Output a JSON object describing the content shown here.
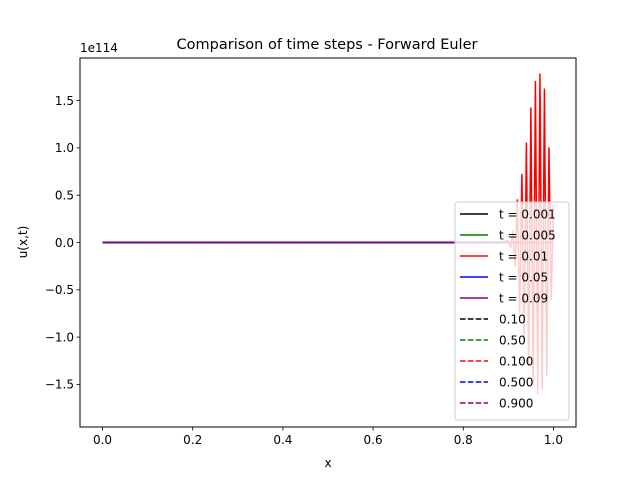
{
  "chart_data": {
    "type": "line",
    "title": "Comparison of time steps - Forward Euler",
    "xlabel": "x",
    "ylabel": "u(x,t)",
    "offset_label": "1e114",
    "xlim": [
      -0.05,
      1.05
    ],
    "ylim": [
      -1.95,
      1.95
    ],
    "xticks": [
      0.0,
      0.2,
      0.4,
      0.6,
      0.8,
      1.0
    ],
    "xtick_labels": [
      "0.0",
      "0.2",
      "0.4",
      "0.6",
      "0.8",
      "1.0"
    ],
    "yticks": [
      -1.5,
      -1.0,
      -0.5,
      0.0,
      0.5,
      1.0,
      1.5
    ],
    "ytick_labels": [
      "−1.5",
      "−1.0",
      "−0.5",
      "0.0",
      "0.5",
      "1.0",
      "1.5"
    ],
    "grid": false,
    "legend_position": "lower-right",
    "series": [
      {
        "name": "t = 0.001",
        "color": "#000000",
        "dash": "solid",
        "x": [
          0.0,
          1.0
        ],
        "y": [
          0.0,
          0.0
        ]
      },
      {
        "name": "t = 0.005",
        "color": "#008000",
        "dash": "solid",
        "x": [
          0.0,
          1.0
        ],
        "y": [
          0.0,
          0.0
        ]
      },
      {
        "name": "t = 0.01",
        "color": "#ff0000",
        "dash": "solid",
        "x": [
          0.0,
          0.88,
          0.9,
          0.905,
          0.91,
          0.915,
          0.92,
          0.925,
          0.93,
          0.935,
          0.94,
          0.945,
          0.95,
          0.955,
          0.96,
          0.965,
          0.97,
          0.975,
          0.98,
          0.985,
          0.99,
          0.995,
          1.0
        ],
        "y": [
          0.0,
          0.0,
          0.02,
          -0.05,
          0.12,
          -0.25,
          0.45,
          -0.75,
          0.72,
          -1.05,
          1.05,
          -1.3,
          1.42,
          -1.5,
          1.7,
          -1.6,
          1.78,
          -1.55,
          1.62,
          -1.4,
          1.0,
          -0.6,
          0.4
        ]
      },
      {
        "name": "t = 0.05",
        "color": "#0000ff",
        "dash": "solid",
        "x": [
          0.0,
          0.88
        ],
        "y": [
          0.0,
          0.0
        ]
      },
      {
        "name": "t = 0.09",
        "color": "#800080",
        "dash": "solid",
        "x": [
          0.0,
          0.88
        ],
        "y": [
          0.0,
          0.0
        ]
      },
      {
        "name": "0.10",
        "color": "#000000",
        "dash": "dashed",
        "x": [
          0.0,
          0.88
        ],
        "y": [
          0.0,
          0.0
        ]
      },
      {
        "name": "0.50",
        "color": "#008000",
        "dash": "dashed",
        "x": [
          0.0,
          0.88
        ],
        "y": [
          0.0,
          0.0
        ]
      },
      {
        "name": "0.100",
        "color": "#ff0000",
        "dash": "dashed",
        "x": [
          0.0,
          0.88
        ],
        "y": [
          0.0,
          0.0
        ]
      },
      {
        "name": "0.500",
        "color": "#0000ff",
        "dash": "dashed",
        "x": [
          0.0,
          0.88
        ],
        "y": [
          0.0,
          0.0
        ]
      },
      {
        "name": "0.900",
        "color": "#800080",
        "dash": "dashed",
        "x": [
          0.0,
          0.88
        ],
        "y": [
          0.0,
          0.0
        ]
      }
    ]
  }
}
